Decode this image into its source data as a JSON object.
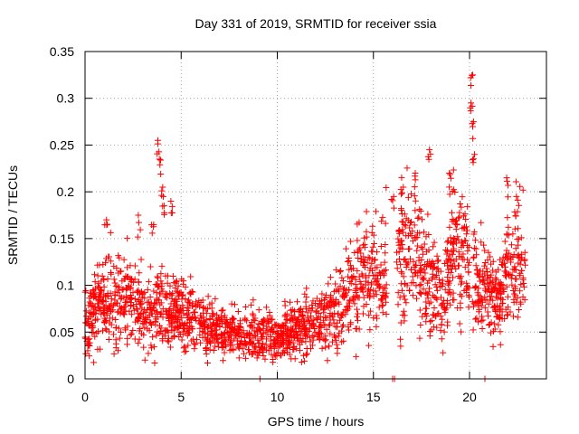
{
  "chart_data": {
    "type": "scatter",
    "title": "Day 331 of 2019, SRMTID for receiver ssia",
    "xlabel": "GPS time / hours",
    "ylabel": "SRMTID / TECUs",
    "xlim": [
      0,
      24
    ],
    "ylim": [
      0,
      0.35
    ],
    "xticks": [
      0,
      5,
      10,
      15,
      20
    ],
    "yticks": [
      0,
      0.05,
      0.1,
      0.15,
      0.2,
      0.25,
      0.3,
      0.35
    ],
    "xtick_labels": [
      "0",
      "5",
      "10",
      "15",
      "20"
    ],
    "ytick_labels": [
      "0",
      "0.05",
      "0.1",
      "0.15",
      "0.2",
      "0.25",
      "0.3",
      "0.35"
    ],
    "grid": true,
    "marker": "+",
    "color": "#ff0000",
    "trend": [
      [
        0.0,
        0.062
      ],
      [
        1.0,
        0.085
      ],
      [
        2.0,
        0.088
      ],
      [
        3.0,
        0.072
      ],
      [
        3.8,
        0.075
      ],
      [
        5.0,
        0.07
      ],
      [
        6.0,
        0.06
      ],
      [
        7.0,
        0.052
      ],
      [
        8.0,
        0.048
      ],
      [
        9.0,
        0.05
      ],
      [
        10.0,
        0.045
      ],
      [
        11.0,
        0.05
      ],
      [
        12.0,
        0.06
      ],
      [
        13.0,
        0.07
      ],
      [
        14.0,
        0.1
      ],
      [
        15.0,
        0.115
      ],
      [
        15.5,
        0.11
      ],
      [
        16.3,
        0.13
      ],
      [
        17.0,
        0.14
      ],
      [
        18.0,
        0.1
      ],
      [
        18.7,
        0.09
      ],
      [
        19.2,
        0.15
      ],
      [
        19.6,
        0.13
      ],
      [
        20.0,
        0.11
      ],
      [
        20.5,
        0.1
      ],
      [
        21.0,
        0.09
      ],
      [
        21.5,
        0.085
      ],
      [
        22.0,
        0.12
      ],
      [
        22.5,
        0.13
      ],
      [
        22.8,
        0.12
      ]
    ],
    "gaps": [
      [
        15.7,
        16.2
      ],
      [
        20.0,
        20.15
      ]
    ],
    "spikes": [
      {
        "x": 3.8,
        "y": 0.255
      },
      {
        "x": 3.9,
        "y": 0.235
      },
      {
        "x": 4.0,
        "y": 0.205
      },
      {
        "x": 4.1,
        "y": 0.185
      },
      {
        "x": 17.9,
        "y": 0.245
      },
      {
        "x": 17.2,
        "y": 0.22
      },
      {
        "x": 19.0,
        "y": 0.22
      },
      {
        "x": 20.1,
        "y": 0.325
      },
      {
        "x": 20.1,
        "y": 0.295
      },
      {
        "x": 20.2,
        "y": 0.275
      },
      {
        "x": 20.2,
        "y": 0.24
      },
      {
        "x": 22.0,
        "y": 0.215
      },
      {
        "x": 22.5,
        "y": 0.195
      },
      {
        "x": 3.5,
        "y": 0.165
      },
      {
        "x": 2.8,
        "y": 0.175
      },
      {
        "x": 1.1,
        "y": 0.17
      },
      {
        "x": 4.5,
        "y": 0.19
      },
      {
        "x": 16.0,
        "y": 0.195
      },
      {
        "x": 16.5,
        "y": 0.205
      }
    ],
    "zero_markers": [
      {
        "x": 9.1,
        "y": 0.0
      },
      {
        "x": 16.0,
        "y": 0.0
      },
      {
        "x": 16.1,
        "y": 0.0
      },
      {
        "x": 20.8,
        "y": 0.0
      }
    ]
  }
}
